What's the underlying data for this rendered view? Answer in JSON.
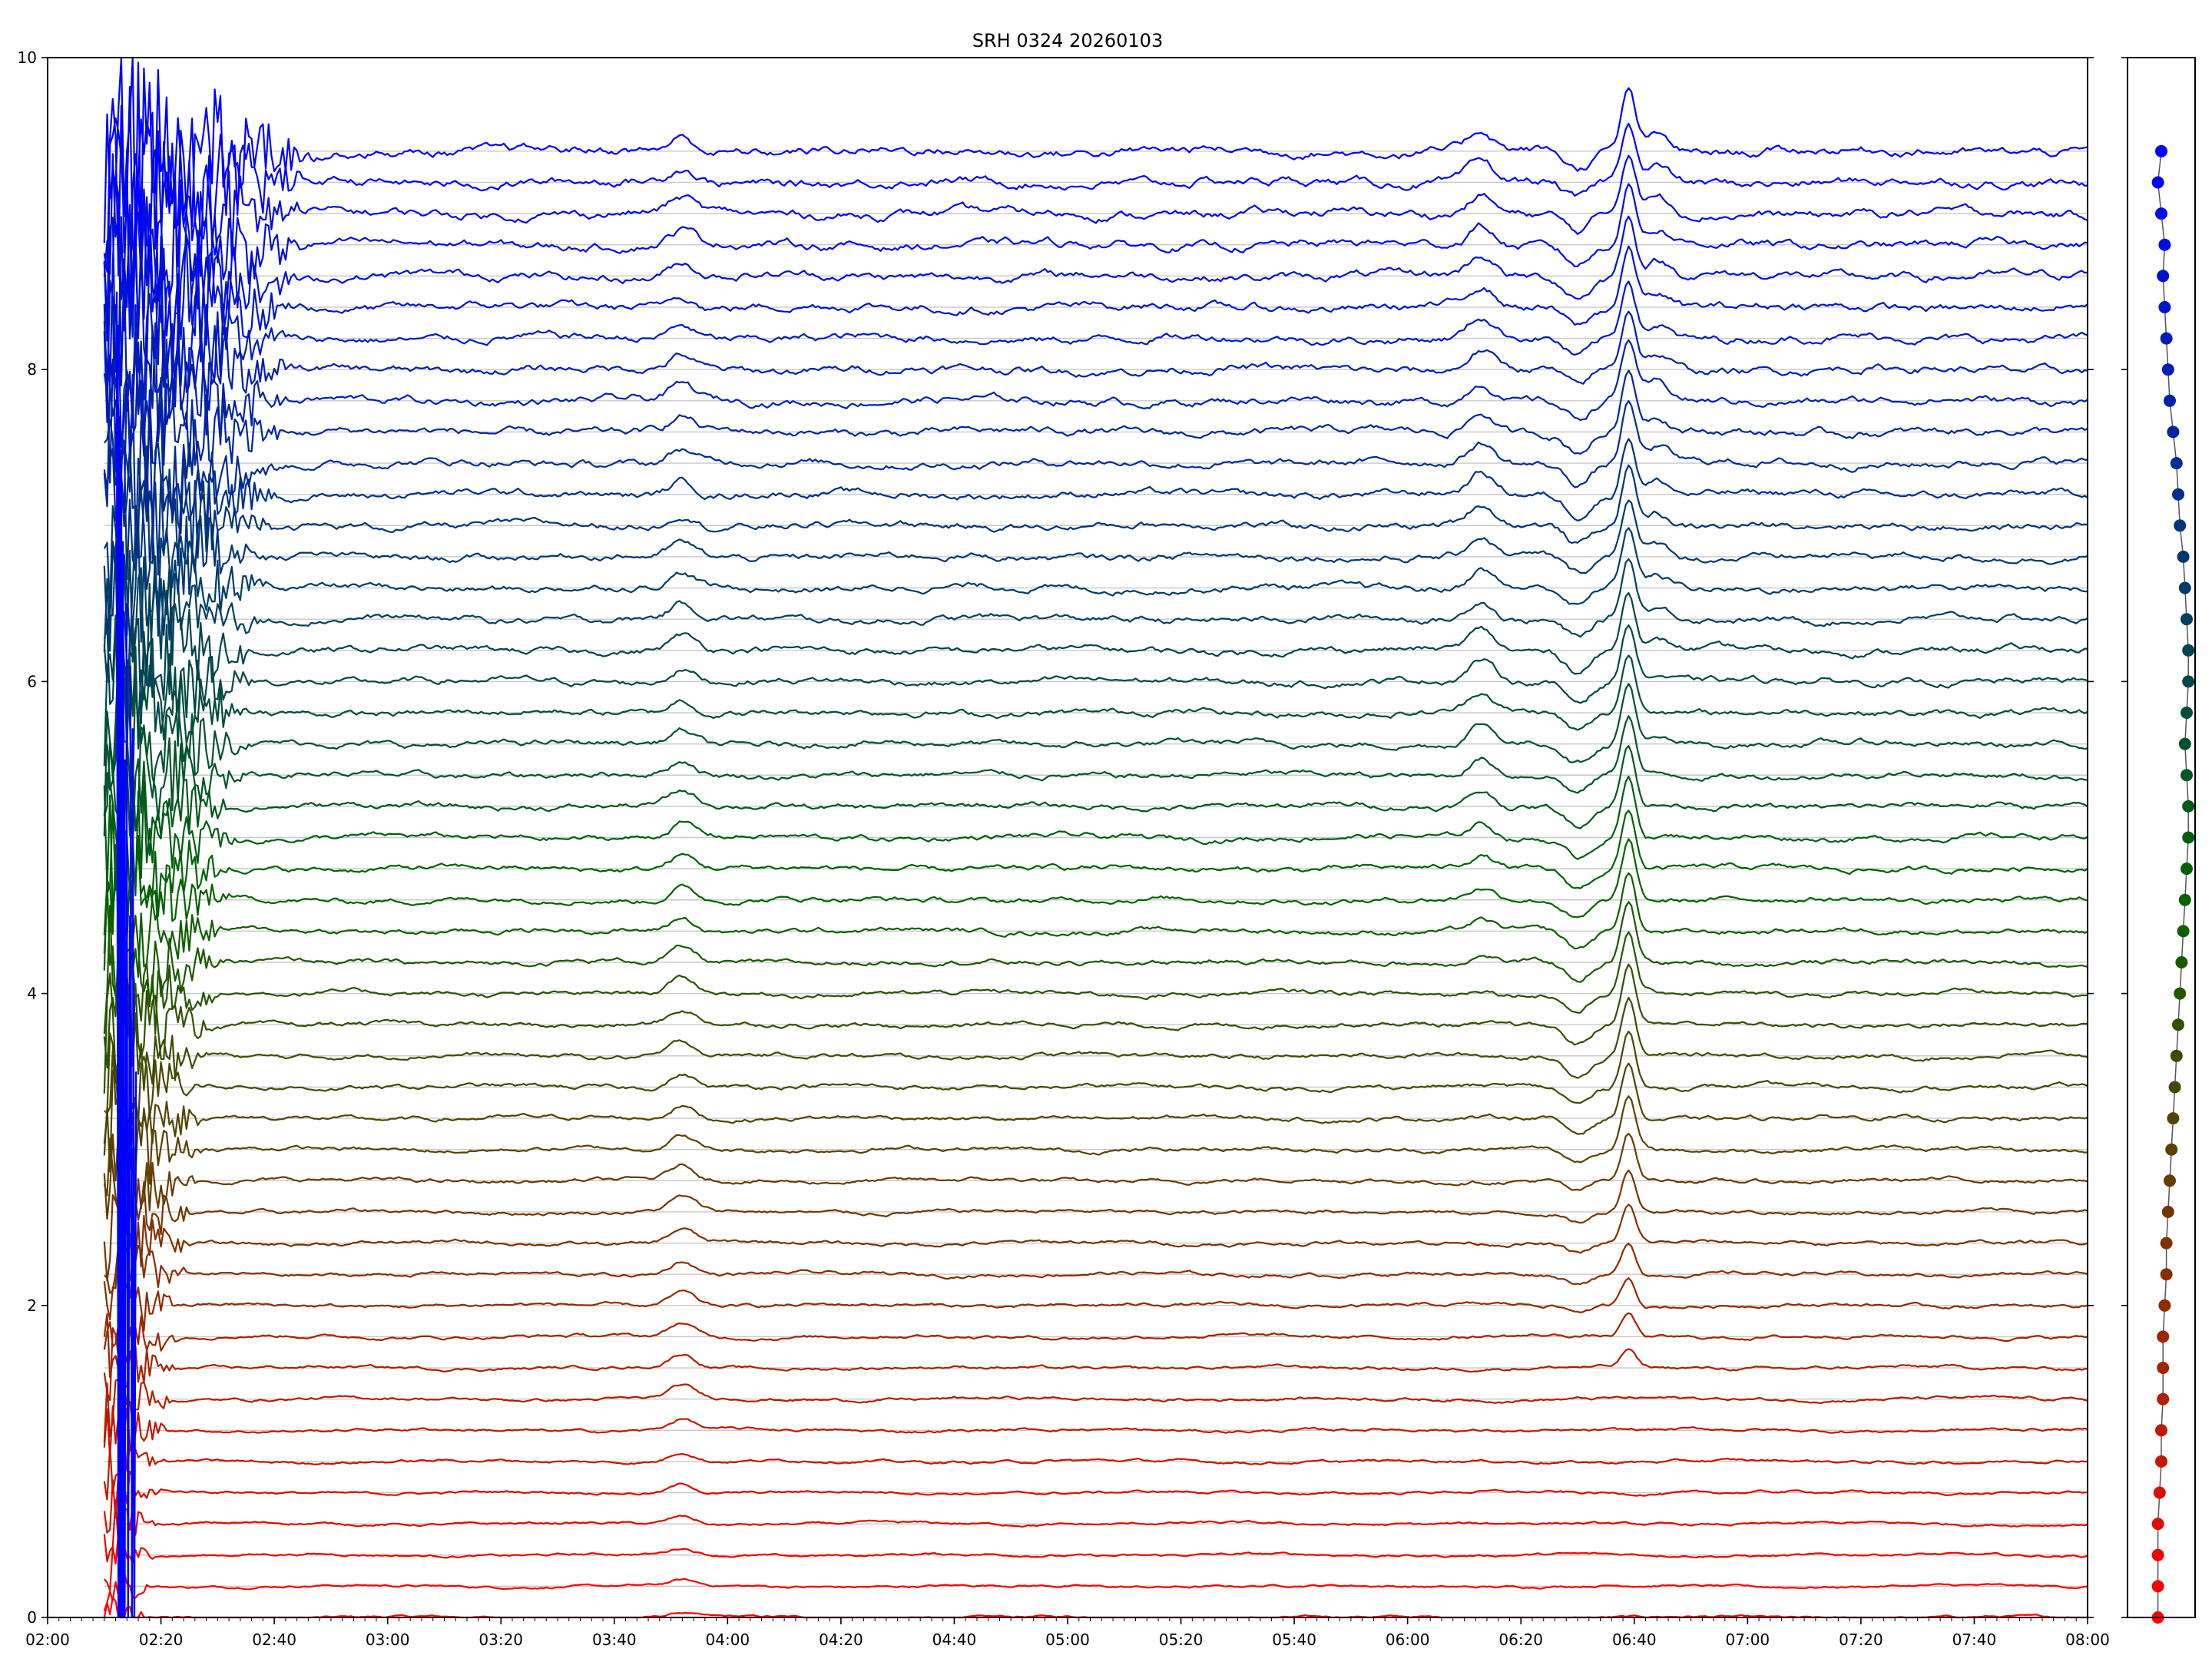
{
  "chart_data": [
    {
      "type": "line",
      "title": "SRH 0324 20260103",
      "xlabel": "",
      "ylabel": "",
      "xlim": [
        "02:00",
        "08:00"
      ],
      "ylim": [
        0,
        10
      ],
      "grid": "horizontal lines at each trace baseline",
      "x_ticks": [
        "02:00",
        "02:20",
        "02:40",
        "03:00",
        "03:20",
        "03:40",
        "04:00",
        "04:20",
        "04:40",
        "05:00",
        "05:20",
        "05:40",
        "06:00",
        "06:20",
        "06:40",
        "07:00",
        "07:20",
        "07:40",
        "08:00"
      ],
      "y_ticks": [
        "0",
        "2",
        "4",
        "6",
        "8",
        "10"
      ],
      "trace_count": 48,
      "trace_spacing": 0.2,
      "data_start": "02:10",
      "data_end": "08:00",
      "color_bottom": "#ff0000",
      "color_middle": "#006400",
      "color_top": "#0000ff",
      "events": [
        {
          "time": "03:52",
          "amp": 0.09,
          "from_trace": 0
        },
        {
          "time": "06:13",
          "amp": 0.13,
          "from_trace": 20
        },
        {
          "time": "06:39",
          "amp": 0.38,
          "from_trace": 8
        },
        {
          "time": "06:44",
          "amp": 0.1,
          "from_trace": 28
        },
        {
          "time": "06:30",
          "amp": -0.12,
          "from_trace": 10
        }
      ]
    },
    {
      "type": "scatter",
      "title": "",
      "ylim": [
        0,
        10
      ],
      "colors": "red (bottom) to green to blue (top)",
      "x": [
        -0.1,
        -0.1,
        -0.1,
        -0.1,
        -0.05,
        0.0,
        0.0,
        0.05,
        0.05,
        0.05,
        0.1,
        0.15,
        0.15,
        0.2,
        0.25,
        0.3,
        0.35,
        0.4,
        0.45,
        0.5,
        0.55,
        0.6,
        0.65,
        0.7,
        0.75,
        0.8,
        0.8,
        0.75,
        0.7,
        0.75,
        0.8,
        0.8,
        0.75,
        0.7,
        0.65,
        0.55,
        0.5,
        0.45,
        0.35,
        0.25,
        0.2,
        0.15,
        0.1,
        0.05,
        0.1,
        0.0,
        -0.1,
        0.0
      ],
      "y": [
        0,
        0.2,
        0.4,
        0.6,
        0.8,
        1.0,
        1.2,
        1.4,
        1.6,
        1.8,
        2.0,
        2.2,
        2.4,
        2.6,
        2.8,
        3.0,
        3.2,
        3.4,
        3.6,
        3.8,
        4.0,
        4.2,
        4.4,
        4.6,
        4.8,
        5.0,
        5.2,
        5.4,
        5.6,
        5.8,
        6.0,
        6.2,
        6.4,
        6.6,
        6.8,
        7.0,
        7.2,
        7.4,
        7.6,
        7.8,
        8.0,
        8.2,
        8.4,
        8.6,
        8.8,
        9.0,
        9.2,
        9.4
      ],
      "xlim": [
        -1,
        1
      ]
    }
  ]
}
